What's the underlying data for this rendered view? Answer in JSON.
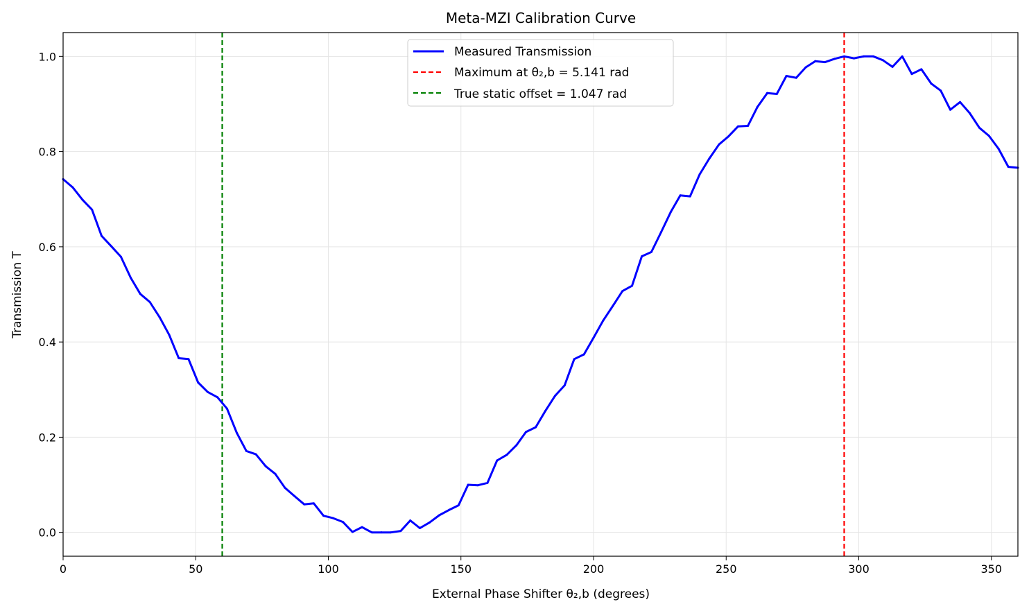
{
  "chart_data": {
    "type": "line",
    "title": "Meta-MZI Calibration Curve",
    "xlabel": "External Phase Shifter θ₂,b (degrees)",
    "ylabel": "Transmission T",
    "xlim": [
      0,
      360
    ],
    "ylim": [
      -0.05,
      1.05
    ],
    "x_ticks": [
      0,
      50,
      100,
      150,
      200,
      250,
      300,
      350
    ],
    "y_ticks": [
      0.0,
      0.2,
      0.4,
      0.6,
      0.8,
      1.0
    ],
    "x_tick_labels": [
      "0",
      "50",
      "100",
      "150",
      "200",
      "250",
      "300",
      "350"
    ],
    "y_tick_labels": [
      "0.0",
      "0.2",
      "0.4",
      "0.6",
      "0.8",
      "1.0"
    ],
    "grid": true,
    "legend_position": "top-center",
    "series": [
      {
        "name": "Measured Transmission",
        "color": "#0000ff",
        "style": "solid",
        "x": [
          0,
          3.6,
          7.3,
          10.9,
          14.5,
          18.2,
          21.8,
          25.5,
          29.1,
          32.7,
          36.4,
          40,
          43.6,
          47.3,
          50.9,
          54.5,
          58.2,
          61.8,
          65.5,
          69.1,
          72.7,
          76.4,
          80,
          83.6,
          87.3,
          90.9,
          94.5,
          98.2,
          101.8,
          105.5,
          109.1,
          112.7,
          116.4,
          120,
          123.6,
          127.3,
          130.9,
          134.5,
          138.2,
          141.8,
          145.5,
          149.1,
          152.7,
          156.4,
          160,
          163.6,
          167.3,
          170.9,
          174.5,
          178.2,
          181.8,
          185.5,
          189.1,
          192.7,
          196.4,
          200,
          203.6,
          207.3,
          210.9,
          214.5,
          218.2,
          221.8,
          225.5,
          229.1,
          232.7,
          236.4,
          240,
          243.6,
          247.3,
          250.9,
          254.5,
          258.2,
          261.8,
          265.5,
          269.1,
          272.7,
          276.4,
          280,
          283.6,
          287.3,
          290.9,
          294.5,
          298.2,
          301.8,
          305.5,
          309.1,
          312.7,
          316.4,
          320,
          323.6,
          327.3,
          330.9,
          334.5,
          338.2,
          341.8,
          345.5,
          349.1,
          352.7,
          356.4,
          360
        ],
        "y": [
          0.742,
          0.725,
          0.699,
          0.678,
          0.623,
          0.601,
          0.579,
          0.535,
          0.501,
          0.484,
          0.452,
          0.415,
          0.366,
          0.364,
          0.315,
          0.295,
          0.284,
          0.26,
          0.209,
          0.171,
          0.164,
          0.139,
          0.123,
          0.094,
          0.076,
          0.059,
          0.061,
          0.035,
          0.03,
          0.022,
          0.001,
          0.011,
          0.0,
          0.0,
          0.0,
          0.003,
          0.025,
          0.009,
          0.021,
          0.036,
          0.047,
          0.057,
          0.1,
          0.099,
          0.104,
          0.151,
          0.163,
          0.183,
          0.211,
          0.221,
          0.255,
          0.287,
          0.309,
          0.364,
          0.374,
          0.409,
          0.445,
          0.476,
          0.507,
          0.518,
          0.58,
          0.589,
          0.631,
          0.673,
          0.708,
          0.706,
          0.752,
          0.785,
          0.815,
          0.832,
          0.853,
          0.854,
          0.894,
          0.923,
          0.921,
          0.959,
          0.955,
          0.977,
          0.99,
          0.988,
          0.995,
          1.0,
          0.996,
          1.0,
          1.0,
          0.992,
          0.978,
          1.0,
          0.963,
          0.973,
          0.943,
          0.928,
          0.888,
          0.904,
          0.881,
          0.85,
          0.833,
          0.806,
          0.768,
          0.766
        ]
      },
      {
        "name": "Maximum at θ₂,b = 5.141 rad",
        "color": "#ff0000",
        "style": "dashed",
        "type": "vline",
        "x_value": 294.5
      },
      {
        "name": "True static offset = 1.047 rad",
        "color": "#008000",
        "style": "dashed",
        "type": "vline",
        "x_value": 60.0
      }
    ]
  }
}
